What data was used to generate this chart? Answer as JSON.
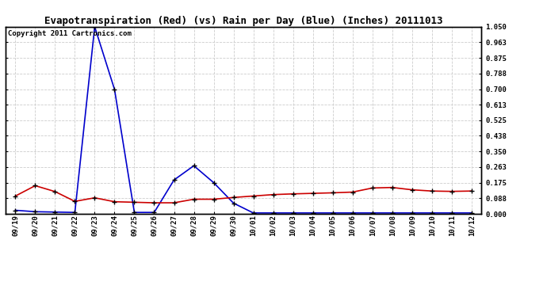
{
  "title": "Evapotranspiration (Red) (vs) Rain per Day (Blue) (Inches) 20111013",
  "copyright": "Copyright 2011 Cartronics.com",
  "labels": [
    "09/19",
    "09/20",
    "09/21",
    "09/22",
    "09/23",
    "09/24",
    "09/25",
    "09/26",
    "09/27",
    "09/28",
    "09/29",
    "09/30",
    "10/01",
    "10/02",
    "10/03",
    "10/04",
    "10/05",
    "10/06",
    "10/07",
    "10/08",
    "10/09",
    "10/10",
    "10/11",
    "10/12"
  ],
  "blue_rain": [
    0.02,
    0.012,
    0.01,
    0.008,
    1.05,
    0.698,
    0.008,
    0.008,
    0.19,
    0.27,
    0.175,
    0.06,
    0.005,
    0.005,
    0.005,
    0.005,
    0.005,
    0.005,
    0.005,
    0.005,
    0.005,
    0.005,
    0.005,
    0.005
  ],
  "red_et": [
    0.1,
    0.158,
    0.125,
    0.07,
    0.09,
    0.068,
    0.065,
    0.062,
    0.062,
    0.082,
    0.082,
    0.092,
    0.1,
    0.108,
    0.112,
    0.115,
    0.118,
    0.122,
    0.145,
    0.148,
    0.135,
    0.128,
    0.126,
    0.128
  ],
  "ylim": [
    0.0,
    1.05
  ],
  "yticks": [
    0.0,
    0.088,
    0.175,
    0.263,
    0.35,
    0.438,
    0.525,
    0.613,
    0.7,
    0.788,
    0.875,
    0.963,
    1.05
  ],
  "blue_color": "#0000cc",
  "red_color": "#cc0000",
  "bg_color": "#ffffff",
  "grid_color": "#aaaaaa",
  "title_fontsize": 9,
  "copyright_fontsize": 6.5
}
